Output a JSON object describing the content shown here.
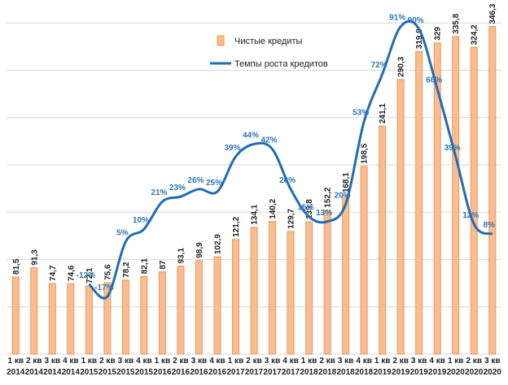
{
  "chart_data": {
    "type": "bar",
    "categories": [
      "1 кв 2014",
      "2 кв 2014",
      "3 кв 2014",
      "4 кв 2014",
      "1 кв 2015",
      "2 кв 2015",
      "3 кв 2015",
      "4 кв 2015",
      "1 кв 2016",
      "2 кв 2016",
      "3 кв 2016",
      "4 кв 2016",
      "1 кв 2017",
      "2 кв 2017",
      "3 кв 2017",
      "4 кв 2017",
      "1 кв 2018",
      "2 кв 2018",
      "3 кв 2018",
      "4 кв 2018",
      "1 кв 2019",
      "2 кв 2019",
      "3 кв 2019",
      "4 кв 2019",
      "1 кв 2020",
      "2 кв 2020",
      "3 кв 2020"
    ],
    "series": [
      {
        "name": "Чистые кредиты",
        "type": "bar",
        "color": "#f9bd90",
        "edge": "#e8985c",
        "values": [
          81.5,
          91.3,
          74.7,
          74.6,
          72.1,
          75.6,
          78.2,
          82.1,
          87,
          93.1,
          98.9,
          102.9,
          121.2,
          134.1,
          140.2,
          129.7,
          139.8,
          152.2,
          168.1,
          198.5,
          241.1,
          290.3,
          319.9,
          329,
          335.8,
          324.2,
          346.3
        ],
        "value_labels": [
          "81,5",
          "91,3",
          "74,7",
          "74,6",
          "72,1",
          "75,6",
          "78,2",
          "82,1",
          "87",
          "93,1",
          "98,9",
          "102,9",
          "121,2",
          "134,1",
          "140,2",
          "129,7",
          "139,8",
          "152,2",
          "168,1",
          "198,5",
          "241,1",
          "290,3",
          "319,9",
          "329",
          "335,8",
          "324,2",
          "346,3"
        ]
      },
      {
        "name": "Темпы роста кредитов",
        "type": "line",
        "axis": "y2",
        "color": "#1f6db5",
        "label_color": "#2e75b6",
        "values": [
          null,
          null,
          null,
          null,
          -12,
          -17,
          5,
          10,
          21,
          23,
          26,
          25,
          39,
          44,
          42,
          26,
          15,
          13,
          20,
          53,
          72,
          91,
          90,
          66,
          39,
          12,
          8
        ],
        "value_labels": [
          null,
          null,
          null,
          null,
          "-12%",
          "-17%",
          "5%",
          "10%",
          "21%",
          "23%",
          "26%",
          "25%",
          "39%",
          "44%",
          "42%",
          "26%",
          "15%",
          "13%",
          "20%",
          "53%",
          "72%",
          "91%",
          "90%",
          "66%",
          "39%",
          "12%",
          "8%"
        ]
      }
    ],
    "ylim": [
      0,
      370
    ],
    "yticks": [
      0,
      50,
      100,
      150,
      200,
      250,
      300,
      350
    ],
    "y2lim": [
      -40,
      100
    ],
    "grid": true,
    "legend": "upper center"
  }
}
